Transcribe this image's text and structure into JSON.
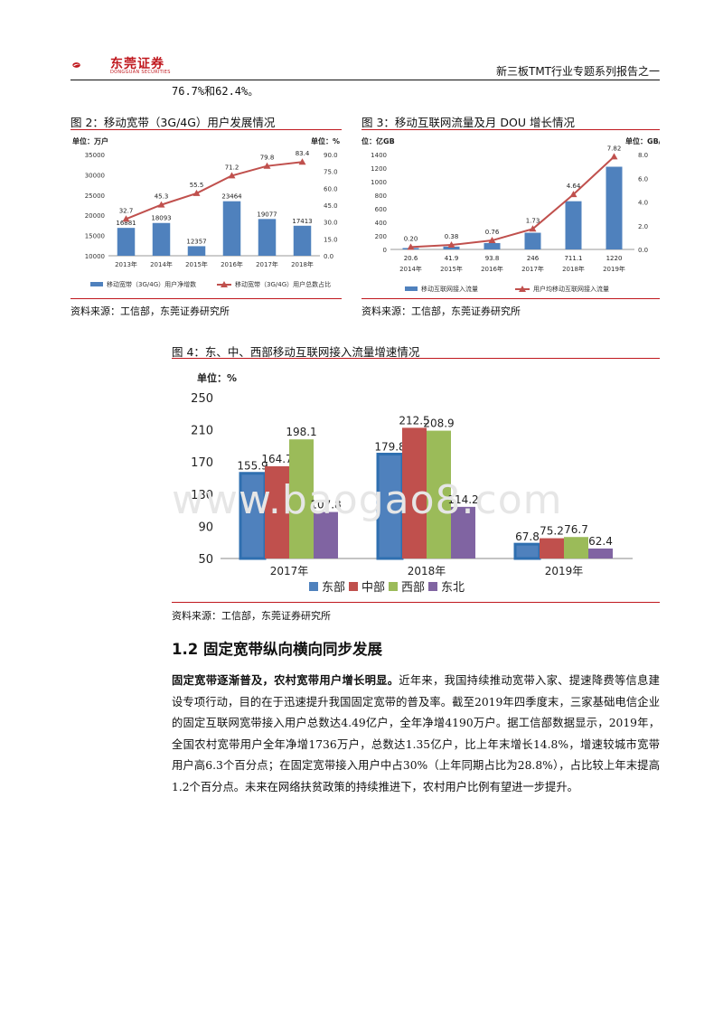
{
  "header": {
    "logo_text": "东莞证券",
    "logo_sub": "DONGGUAN SECURITIES",
    "report_title": "新三板TMT行业专题系列报告之一"
  },
  "intro_line": "76.7%和62.4%。",
  "figure2": {
    "title": "图 2：移动宽带（3G/4G）用户发展情况",
    "source": "资料来源：工信部，东莞证券研究所",
    "left_unit": "单位：万户",
    "right_unit": "单位：%",
    "chart_data": {
      "type": "bar+line",
      "categories": [
        "2013年",
        "2014年",
        "2015年",
        "2016年",
        "2017年",
        "2018年"
      ],
      "series": [
        {
          "name": "移动宽带（3G/4G）用户净增数",
          "type": "bar",
          "axis": "left",
          "values": [
            16881,
            18093,
            12357,
            23464,
            19077,
            17413
          ],
          "color": "#4f81bd"
        },
        {
          "name": "移动宽带（3G/4G）用户总数占比",
          "type": "line",
          "axis": "right",
          "values": [
            32.7,
            45.3,
            55.5,
            71.2,
            79.8,
            83.4
          ],
          "color": "#c0504d"
        }
      ],
      "ylim_left": [
        10000,
        35000
      ],
      "yticks_left": [
        "10000",
        "15000",
        "20000",
        "25000",
        "30000",
        "35000"
      ],
      "ylim_right": [
        0,
        90
      ],
      "yticks_right": [
        "0.0",
        "15.0",
        "30.0",
        "45.0",
        "60.0",
        "75.0",
        "90.0"
      ],
      "legend": "bottom",
      "grid": false
    }
  },
  "figure3": {
    "title": "图 3：移动互联网流量及月 DOU 增长情况",
    "source": "资料来源：工信部，东莞证券研究所",
    "left_unit": "单位：亿GB",
    "right_unit": "单位：GB/月/户",
    "chart_data": {
      "type": "bar+line",
      "categories": [
        "2014年",
        "2015年",
        "2016年",
        "2017年",
        "2018年",
        "2019年"
      ],
      "series": [
        {
          "name": "移动互联网接入流量",
          "type": "bar",
          "axis": "left",
          "values": [
            20.6,
            41.9,
            93.8,
            246,
            711.1,
            1220
          ],
          "labels": [
            "20.6",
            "41.9",
            "93.8",
            "246",
            "711.1",
            "1220"
          ],
          "color": "#4f81bd"
        },
        {
          "name": "用户均移动互联网接入流量",
          "type": "line",
          "axis": "right",
          "values": [
            0.2,
            0.38,
            0.76,
            1.73,
            4.64,
            7.82
          ],
          "labels": [
            "0.20",
            "0.38",
            "0.76",
            "1.73",
            "4.64",
            "7.82"
          ],
          "color": "#c0504d"
        }
      ],
      "ylim_left": [
        0,
        1400
      ],
      "yticks_left": [
        "0",
        "200",
        "400",
        "600",
        "800",
        "1000",
        "1200",
        "1400"
      ],
      "ylim_right": [
        0,
        8
      ],
      "yticks_right": [
        "0.0",
        "2.0",
        "4.0",
        "6.0",
        "8.0"
      ],
      "legend": "bottom",
      "grid": false
    }
  },
  "figure4": {
    "title": "图 4：东、中、西部移动互联网接入流量增速情况",
    "source": "资料来源：工信部，东莞证券研究所",
    "unit": "单位：%",
    "chart_data": {
      "type": "bar",
      "categories": [
        "2017年",
        "2018年",
        "2019年"
      ],
      "series": [
        {
          "name": "东部",
          "values": [
            155.9,
            179.8,
            67.8
          ],
          "color": "#4f81bd"
        },
        {
          "name": "中部",
          "values": [
            164.7,
            212.5,
            75.2
          ],
          "color": "#c0504d"
        },
        {
          "name": "西部",
          "values": [
            198.1,
            208.9,
            76.7
          ],
          "color": "#9bbb59"
        },
        {
          "name": "东北",
          "values": [
            107.8,
            114.2,
            62.4
          ],
          "color": "#8064a2"
        }
      ],
      "ylim": [
        50,
        250
      ],
      "yticks": [
        "50",
        "90",
        "130",
        "170",
        "210",
        "250"
      ],
      "legend": "bottom",
      "grid": false
    }
  },
  "watermark": "www.baogao8.com",
  "section": {
    "title": "1.2  固定宽带纵向横向同步发展",
    "lead": "固定宽带逐渐普及，农村宽带用户增长明显。",
    "body": "近年来，我国持续推动宽带入家、提速降费等信息建设专项行动，目的在于迅速提升我国固定宽带的普及率。截至2019年四季度末，三家基础电信企业的固定互联网宽带接入用户总数达4.49亿户，全年净增4190万户。据工信部数据显示，2019年，全国农村宽带用户全年净增1736万户，总数达1.35亿户，比上年末增长14.8%，增速较城市宽带用户高6.3个百分点；在固定宽带接入用户中占30%（上年同期占比为28.8%），占比较上年末提高1.2个百分点。未来在网络扶贫政策的持续推进下，农村用户比例有望进一步提升。"
  },
  "colors": {
    "brand_red": "#c0181e",
    "bar_blue": "#4f81bd",
    "line_red": "#c0504d"
  }
}
